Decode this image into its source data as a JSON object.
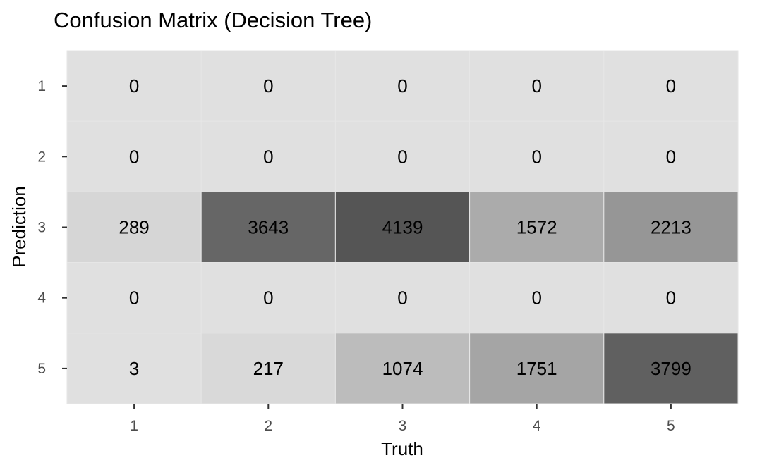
{
  "chart_data": {
    "type": "heatmap",
    "title": "Confusion Matrix (Decision Tree)",
    "xlabel": "Truth",
    "ylabel": "Prediction",
    "x_categories": [
      "1",
      "2",
      "3",
      "4",
      "5"
    ],
    "y_categories": [
      "1",
      "2",
      "3",
      "4",
      "5"
    ],
    "matrix": [
      [
        0,
        0,
        0,
        0,
        0
      ],
      [
        0,
        0,
        0,
        0,
        0
      ],
      [
        289,
        3643,
        4139,
        1572,
        2213
      ],
      [
        0,
        0,
        0,
        0,
        0
      ],
      [
        3,
        217,
        1074,
        1751,
        3799
      ]
    ],
    "color_scale": {
      "low": "#e0e0e0",
      "high": "#555555"
    },
    "grid": false,
    "legend": "none"
  }
}
